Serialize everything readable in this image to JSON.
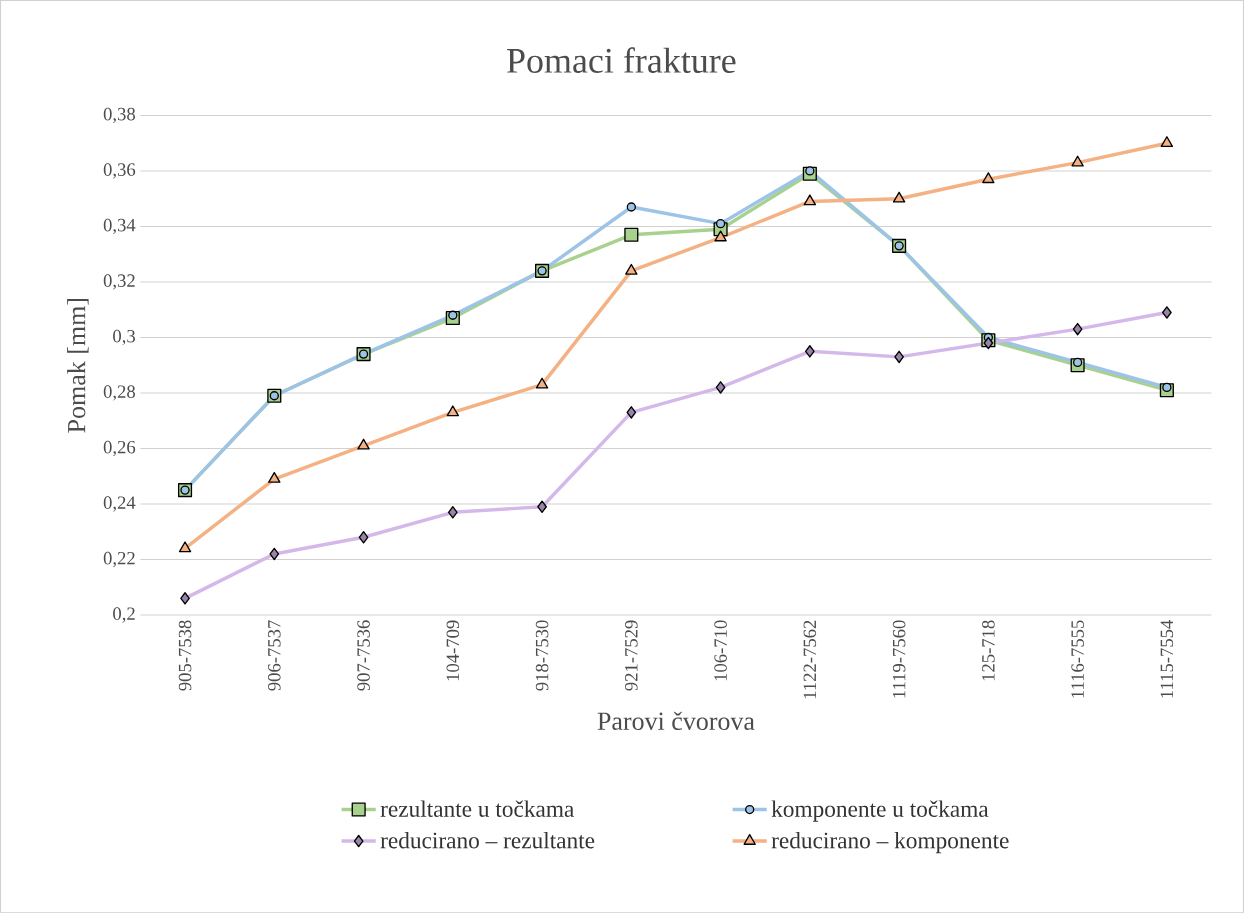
{
  "chart_data": {
    "type": "line",
    "title": "Pomaci frakture",
    "xlabel": "Parovi čvorova",
    "ylabel": "Pomak [mm]",
    "categories": [
      "905-7538",
      "906-7537",
      "907-7536",
      "104-709",
      "918-7530",
      "921-7529",
      "106-710",
      "1122-7562",
      "1119-7560",
      "125-718",
      "1116-7555",
      "1115-7554"
    ],
    "series": [
      {
        "name": "rezultante u točkama",
        "color": "#a9d18e",
        "marker": "square",
        "values": [
          0.245,
          0.279,
          0.294,
          0.307,
          0.324,
          0.337,
          0.339,
          0.359,
          0.333,
          0.299,
          0.29,
          0.281
        ]
      },
      {
        "name": "komponente u točkama",
        "color": "#9dc3e6",
        "marker": "circle",
        "values": [
          0.245,
          0.279,
          0.294,
          0.308,
          0.324,
          0.347,
          0.341,
          0.36,
          0.333,
          0.3,
          0.291,
          0.282
        ]
      },
      {
        "name": "reducirano – rezultante",
        "color": "#d5b8ea",
        "marker": "diamond",
        "values": [
          0.206,
          0.222,
          0.228,
          0.237,
          0.239,
          0.273,
          0.282,
          0.295,
          0.293,
          0.298,
          0.303,
          0.309
        ]
      },
      {
        "name": "reducirano – komponente",
        "color": "#f4b183",
        "marker": "triangle",
        "values": [
          0.224,
          0.249,
          0.261,
          0.273,
          0.283,
          0.324,
          0.336,
          0.349,
          0.35,
          0.357,
          0.363,
          0.37
        ]
      }
    ],
    "ylim": [
      0.2,
      0.38
    ],
    "yticks": [
      {
        "value": 0.2,
        "label": "0,2"
      },
      {
        "value": 0.22,
        "label": "0,22"
      },
      {
        "value": 0.24,
        "label": "0,24"
      },
      {
        "value": 0.26,
        "label": "0,26"
      },
      {
        "value": 0.28,
        "label": "0,28"
      },
      {
        "value": 0.3,
        "label": "0,3"
      },
      {
        "value": 0.32,
        "label": "0,32"
      },
      {
        "value": 0.34,
        "label": "0,34"
      },
      {
        "value": 0.36,
        "label": "0,36"
      },
      {
        "value": 0.38,
        "label": "0,38"
      }
    ],
    "grid": "y",
    "legend": "bottom",
    "line_style": "solid"
  }
}
